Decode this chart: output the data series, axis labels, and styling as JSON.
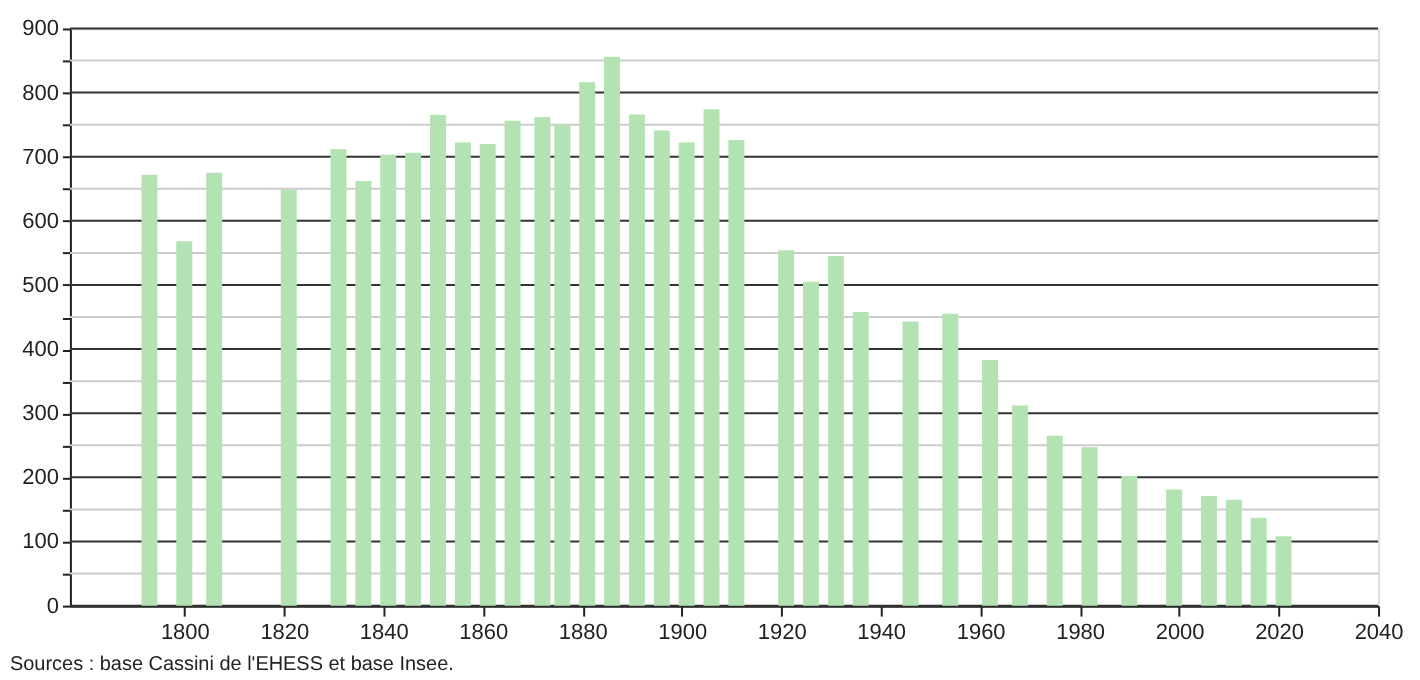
{
  "chart_data": {
    "type": "bar",
    "x": [
      1793,
      1800,
      1806,
      1821,
      1831,
      1836,
      1841,
      1846,
      1851,
      1856,
      1861,
      1866,
      1872,
      1876,
      1881,
      1886,
      1891,
      1896,
      1901,
      1906,
      1911,
      1921,
      1926,
      1931,
      1936,
      1946,
      1954,
      1962,
      1968,
      1975,
      1982,
      1990,
      1999,
      2006,
      2011,
      2016,
      2021
    ],
    "values": [
      672,
      568,
      675,
      648,
      712,
      662,
      703,
      706,
      765,
      722,
      720,
      756,
      762,
      750,
      816,
      856,
      766,
      741,
      722,
      774,
      726,
      554,
      505,
      545,
      458,
      443,
      455,
      383,
      312,
      265,
      247,
      202,
      181,
      171,
      165,
      137,
      108
    ],
    "color": "#b3e3b3",
    "xlim": [
      1777,
      2040
    ],
    "xticks": [
      1800,
      1820,
      1840,
      1860,
      1880,
      1900,
      1920,
      1940,
      1960,
      1980,
      2000,
      2020,
      2040
    ],
    "ylim": [
      0,
      900
    ],
    "yticks": [
      0,
      {
        "value": 50,
        "label": null
      },
      100,
      {
        "value": 150,
        "label": null
      },
      200,
      {
        "value": 250,
        "label": null
      },
      300,
      {
        "value": 350,
        "label": null
      },
      400,
      {
        "value": 450,
        "label": null
      },
      500,
      {
        "value": 550,
        "label": null
      },
      600,
      {
        "value": 650,
        "label": null
      },
      700,
      {
        "value": 750,
        "label": null
      },
      800,
      {
        "value": 850,
        "label": null
      },
      900
    ],
    "grid": "y",
    "annotations": [
      "Sources : base Cassini de l'EHESS et base Insee."
    ]
  }
}
